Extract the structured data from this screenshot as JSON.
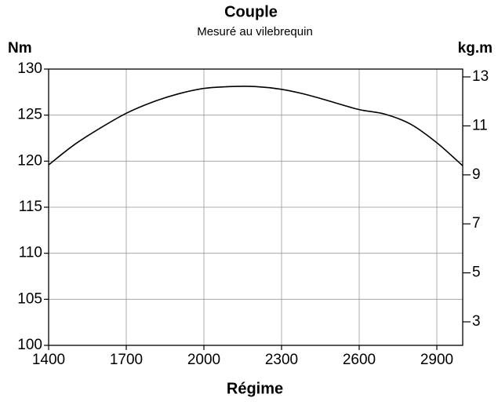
{
  "chart_data": {
    "type": "line",
    "title": "Couple",
    "subtitle": "Mesuré au vilebrequin",
    "ylabel": "Nm",
    "y2label": "kg.m",
    "xlabel": "Régime",
    "x": [
      1400,
      1500,
      1600,
      1700,
      1800,
      1900,
      2000,
      2100,
      2200,
      2300,
      2400,
      2500,
      2600,
      2700,
      2800,
      2900,
      3000
    ],
    "values": [
      119.6,
      121.8,
      123.6,
      125.2,
      126.4,
      127.3,
      127.9,
      128.1,
      128.1,
      127.8,
      127.2,
      126.4,
      125.6,
      125.1,
      124.0,
      122.0,
      119.5
    ],
    "color": "#000000",
    "xlim": [
      1400,
      3000
    ],
    "xticks": [
      1400,
      1700,
      2000,
      2300,
      2600,
      2900
    ],
    "ylim": [
      100,
      130
    ],
    "yticks": [
      100,
      105,
      110,
      115,
      120,
      125,
      130
    ],
    "y2lim": [
      2.04,
      13.32
    ],
    "y2ticks": [
      3,
      5,
      7,
      9,
      11,
      13
    ],
    "grid": true
  }
}
